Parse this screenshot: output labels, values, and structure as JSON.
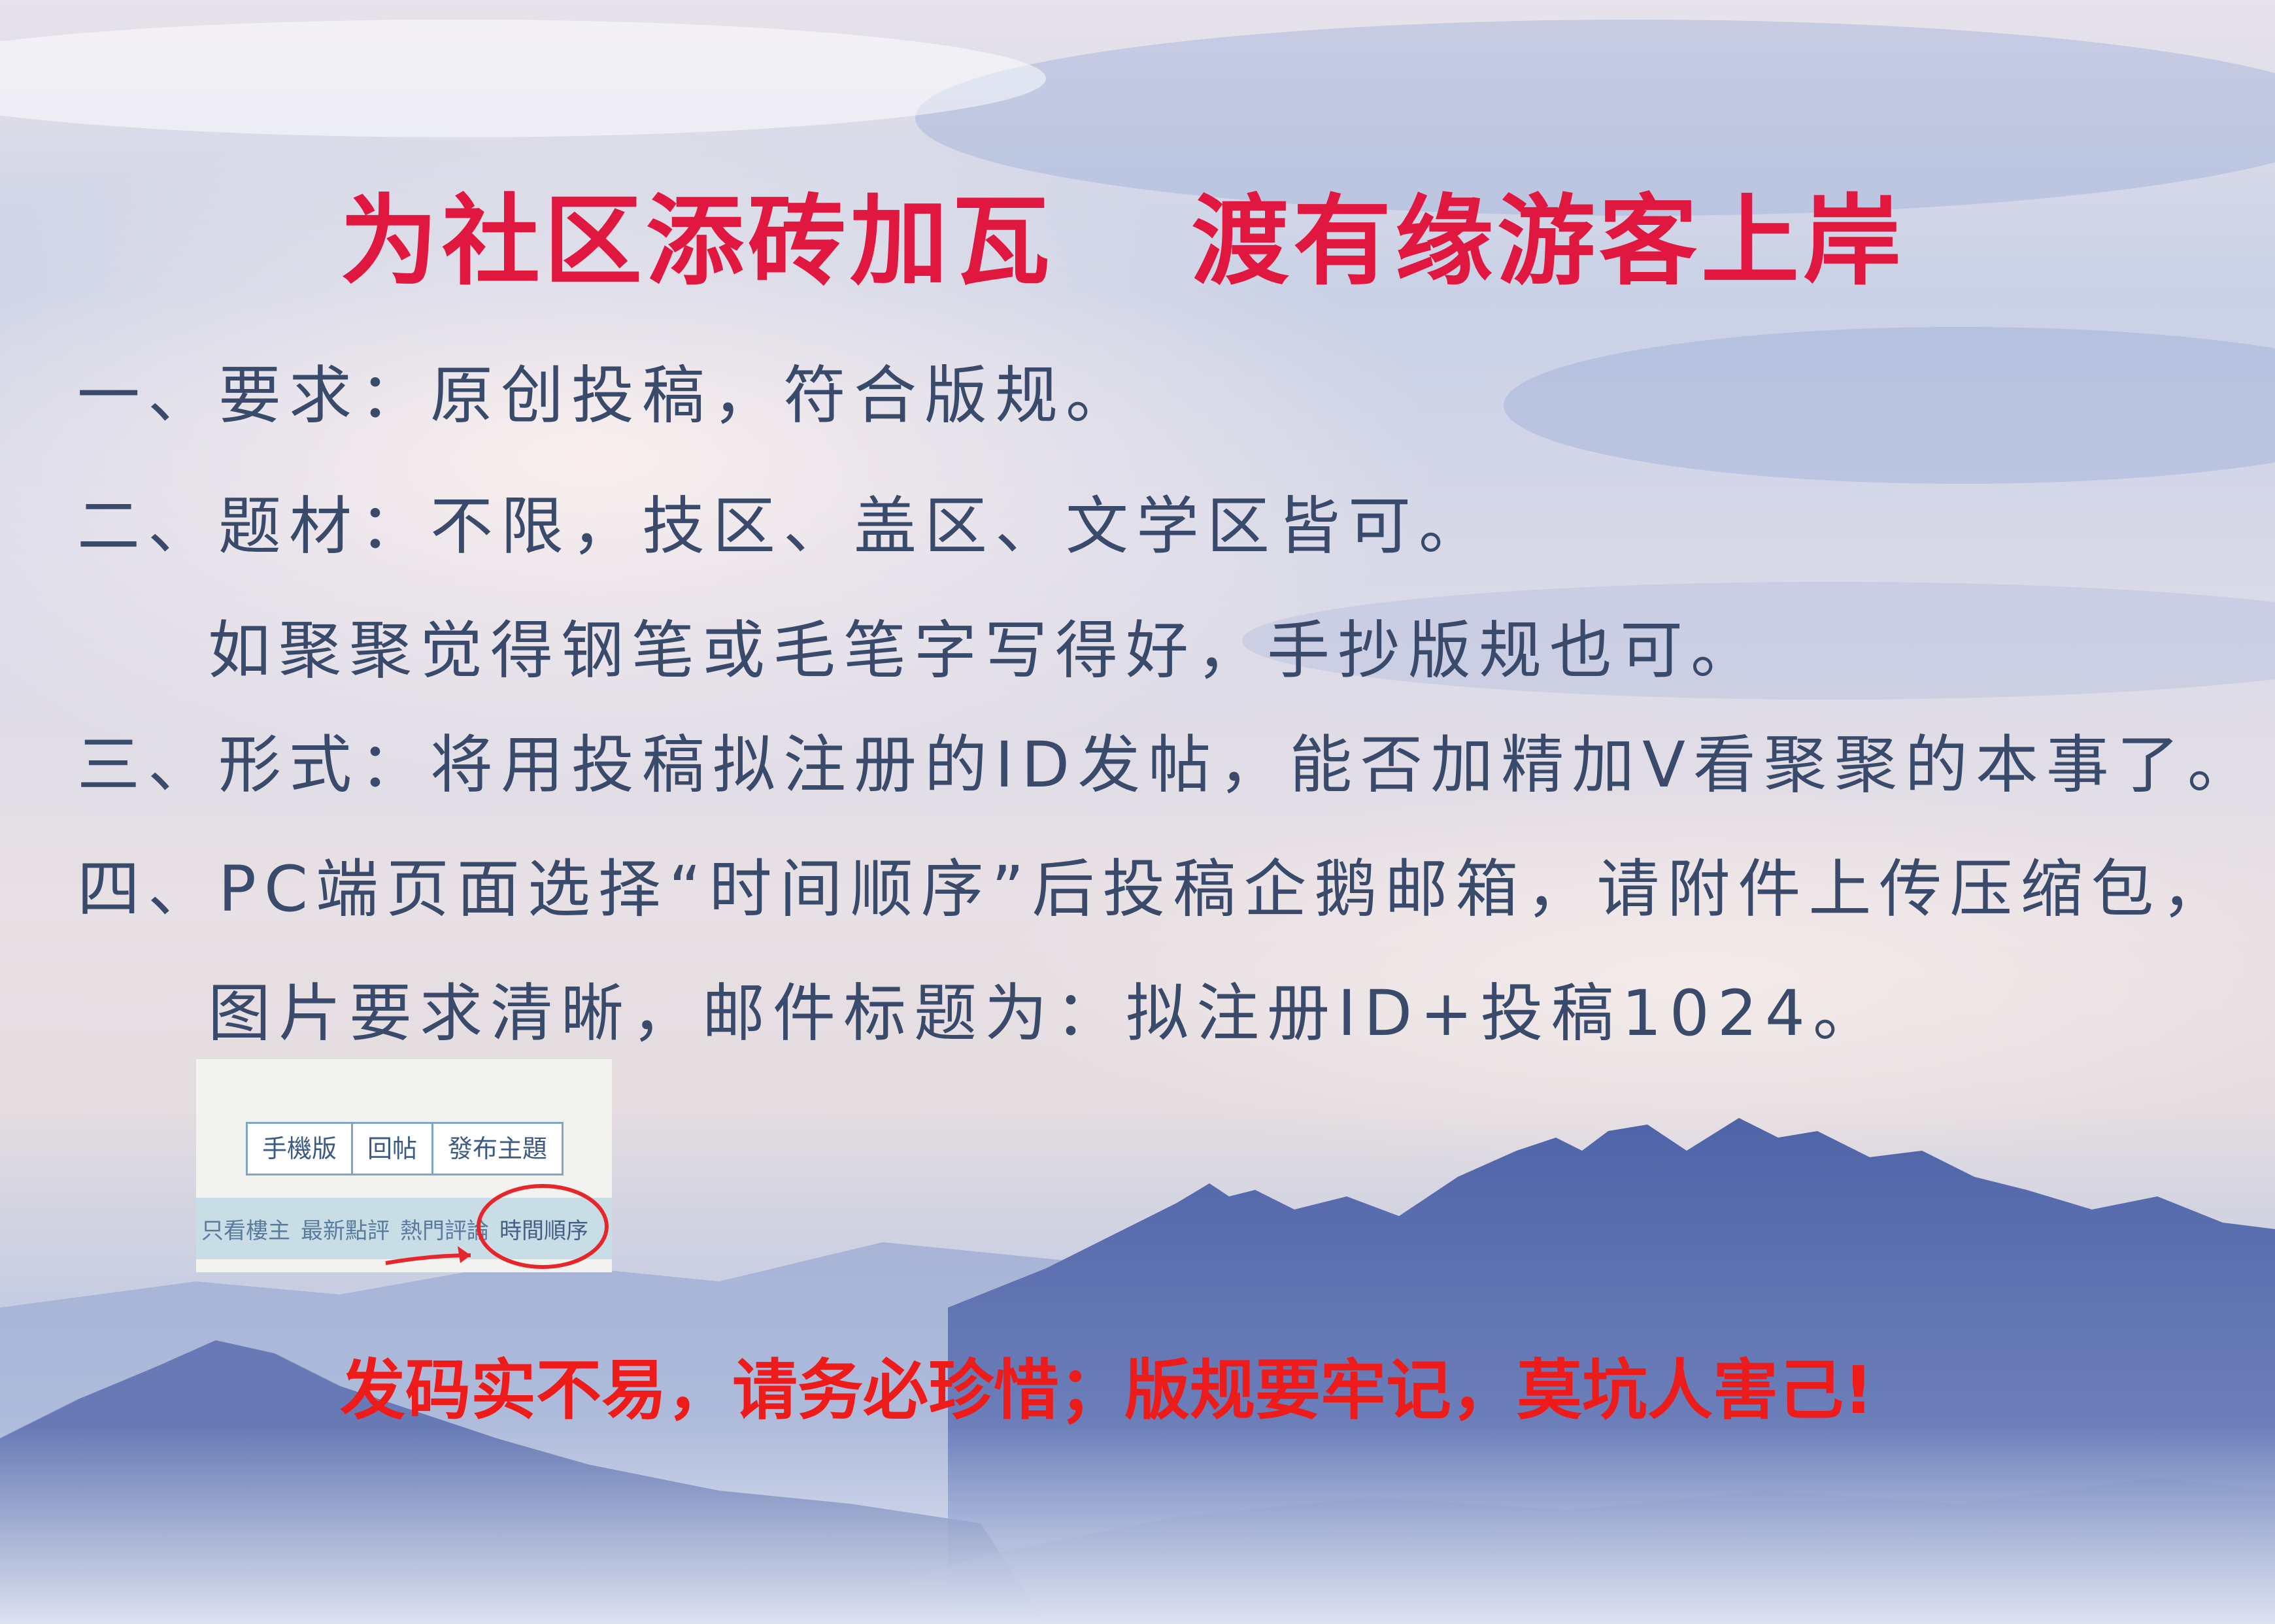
{
  "poster": {
    "headline_left": "为社区添砖加瓦",
    "headline_right": "渡有缘游客上岸",
    "rules": [
      "一、要求：原创投稿，符合版规。",
      "二、题材：不限，技区、盖区、文学区皆可。",
      "如聚聚觉得钢笔或毛笔字写得好，手抄版规也可。",
      "三、形式：将用投稿拟注册的ID发帖，能否加精加V看聚聚的本事了。",
      "四、PC端页面选择“时间顺序”后投稿企鹅邮箱，请附件上传压缩包，",
      "图片要求清晰，邮件标题为：拟注册ID+投稿1024。"
    ],
    "footer": "发码实不易，请务必珍惜；版规要牢记，莫坑人害己!"
  },
  "screenshot": {
    "toolbar": [
      "手機版",
      "回帖",
      "發布主題"
    ],
    "sort_options": [
      "只看樓主",
      "最新點評",
      "熱門評論",
      "時間順序"
    ],
    "highlight_color": "#e8252b"
  },
  "colors": {
    "headline": "#e0173f",
    "body_text": "#3a4a6a",
    "footer": "#ee1b1b"
  }
}
